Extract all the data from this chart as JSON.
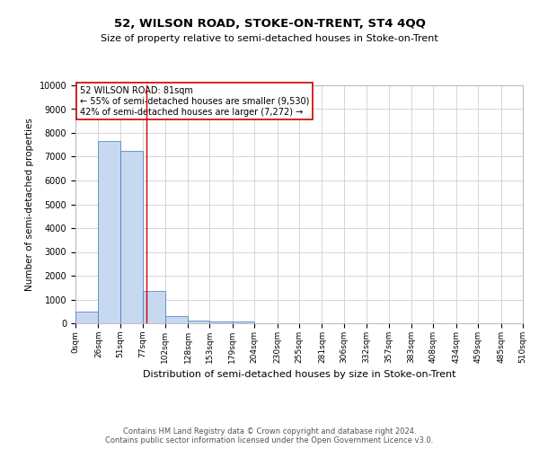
{
  "title1": "52, WILSON ROAD, STOKE-ON-TRENT, ST4 4QQ",
  "title2": "Size of property relative to semi-detached houses in Stoke-on-Trent",
  "xlabel": "Distribution of semi-detached houses by size in Stoke-on-Trent",
  "ylabel": "Number of semi-detached properties",
  "footnote": "Contains HM Land Registry data © Crown copyright and database right 2024.\nContains public sector information licensed under the Open Government Licence v3.0.",
  "annotation_title": "52 WILSON ROAD: 81sqm",
  "annotation_line1": "← 55% of semi-detached houses are smaller (9,530)",
  "annotation_line2": "42% of semi-detached houses are larger (7,272) →",
  "property_size": 81,
  "bin_edges": [
    0,
    26,
    51,
    77,
    102,
    128,
    153,
    179,
    204,
    230,
    255,
    281,
    306,
    332,
    357,
    383,
    408,
    434,
    459,
    485,
    510
  ],
  "bar_heights": [
    500,
    7650,
    7250,
    1350,
    300,
    130,
    90,
    70,
    0,
    0,
    0,
    0,
    0,
    0,
    0,
    0,
    0,
    0,
    0,
    0
  ],
  "bar_color": "#c6d9f0",
  "bar_edge_color": "#4472c4",
  "vline_color": "#cc0000",
  "vline_x": 81,
  "annotation_box_color": "#ffffff",
  "annotation_box_edge": "#cc0000",
  "ylim": [
    0,
    10000
  ],
  "yticks": [
    0,
    1000,
    2000,
    3000,
    4000,
    5000,
    6000,
    7000,
    8000,
    9000,
    10000
  ],
  "grid_color": "#d0d0d0",
  "background_color": "#ffffff"
}
